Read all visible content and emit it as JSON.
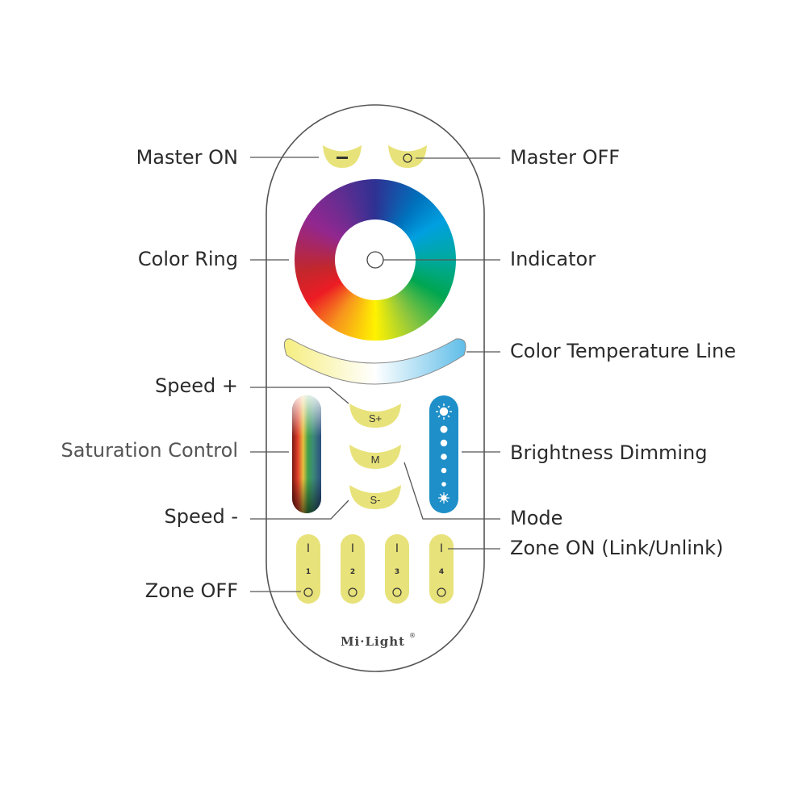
{
  "labels": {
    "master_on": "Master ON",
    "master_off": "Master OFF",
    "color_ring": "Color Ring",
    "indicator": "Indicator",
    "color_temperature_line": "Color Temperature Line",
    "speed_plus": "Speed +",
    "saturation_control": "Saturation Control",
    "brightness_dimming": "Brightness Dimming",
    "speed_minus": "Speed -",
    "mode": "Mode",
    "zone_on": "Zone ON (Link/Unlink)",
    "zone_off": "Zone OFF"
  },
  "remote": {
    "button_color": "#e8e27a",
    "brightness_color": "#1e8fc8",
    "speed_plus_text": "S+",
    "mode_text": "M",
    "speed_minus_text": "S-",
    "zone_on_symbol": "I",
    "zone_off_symbol": "O",
    "zones": [
      "1",
      "2",
      "3",
      "4"
    ],
    "logo": "Mi·Light",
    "logo_mark": "®"
  }
}
